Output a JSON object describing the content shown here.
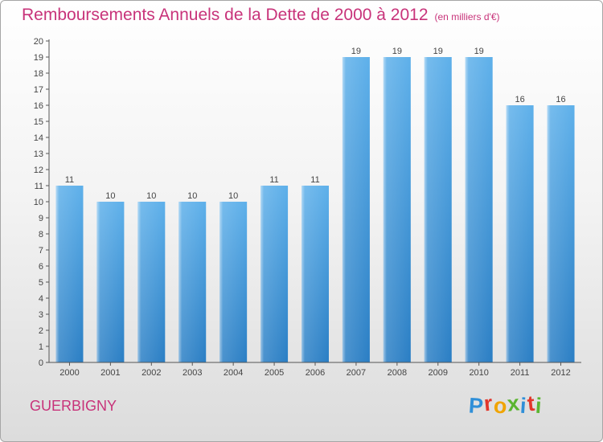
{
  "chart_data": {
    "type": "bar",
    "title": "Remboursements Annuels de la Dette de 2000 à 2012",
    "subtitle": "(en milliers d'€)",
    "categories": [
      "2000",
      "2001",
      "2002",
      "2003",
      "2004",
      "2005",
      "2006",
      "2007",
      "2008",
      "2009",
      "2010",
      "2011",
      "2012"
    ],
    "values": [
      11,
      10,
      10,
      10,
      10,
      11,
      11,
      19,
      19,
      19,
      19,
      16,
      16
    ],
    "ylim": [
      0,
      20
    ],
    "yticks": [
      0,
      1,
      2,
      3,
      4,
      5,
      6,
      7,
      8,
      9,
      10,
      11,
      12,
      13,
      14,
      15,
      16,
      17,
      18,
      19,
      20
    ],
    "xlabel": "",
    "ylabel": "",
    "grid": false
  },
  "commune": "GUERBIGNY",
  "logo": {
    "letters": [
      "P",
      "r",
      "o",
      "x",
      "i",
      "t",
      "i"
    ],
    "colors": [
      "#2f8fd8",
      "#e2362b",
      "#f0a400",
      "#5bb531",
      "#2f8fd8",
      "#e2362b",
      "#5bb531"
    ]
  },
  "colors": {
    "title": "#c8337a",
    "bar_light": "#5eb0ea",
    "bar_dark": "#2a7ec4",
    "axis": "#555555",
    "text": "#444444"
  }
}
